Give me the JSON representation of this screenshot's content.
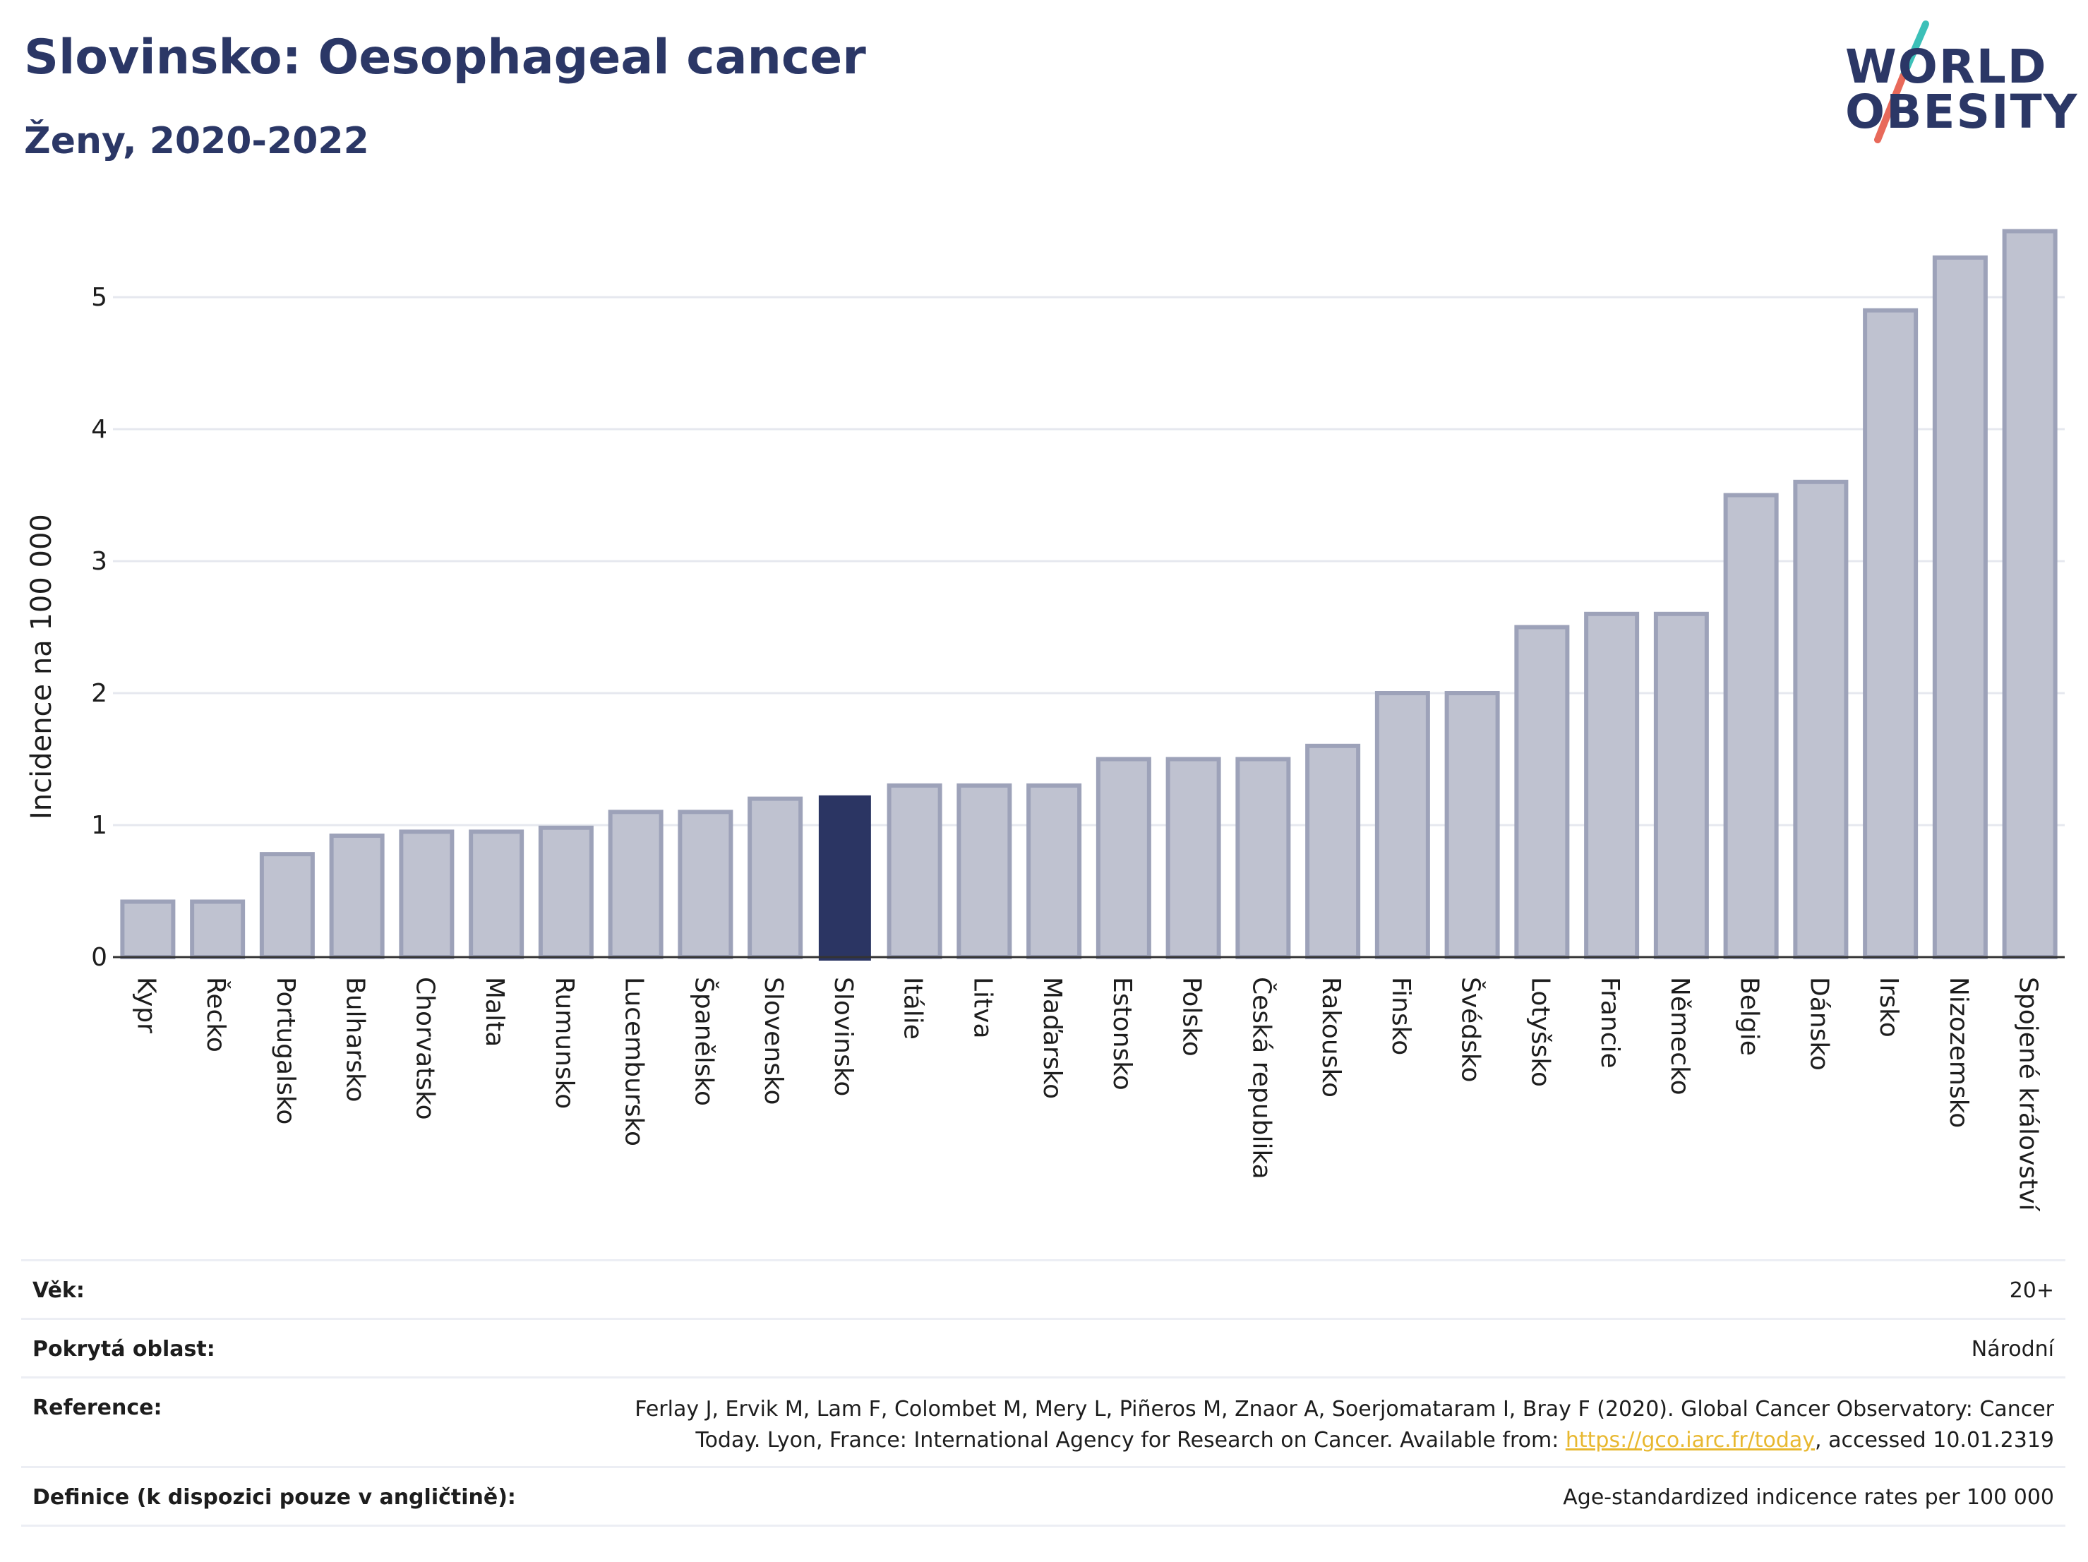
{
  "header": {
    "title": "Slovinsko: Oesophageal cancer",
    "subtitle": "Ženy, 2020-2022"
  },
  "logo": {
    "line1": "WORLD",
    "line2": "OBESITY",
    "colors": {
      "text": "#2b3766",
      "slash_top": "#3cc0b8",
      "slash_bottom": "#e8695a"
    }
  },
  "colors": {
    "bar_default": "#bfc2d0",
    "bar_default_border": "#9da2b9",
    "bar_highlight": "#2b3563",
    "grid": "#e6e8ef",
    "axis": "#333333",
    "title": "#2b3766",
    "link": "#e8b830"
  },
  "chart_data": {
    "type": "bar",
    "ylabel": "Incidence na 100 000",
    "ylim": [
      0,
      5.6
    ],
    "yticks": [
      0,
      1,
      2,
      3,
      4,
      5
    ],
    "grid": true,
    "highlight": "Slovinsko",
    "categories": [
      "Kypr",
      "Řecko",
      "Portugalsko",
      "Bulharsko",
      "Chorvatsko",
      "Malta",
      "Rumunsko",
      "Lucembursko",
      "Španělsko",
      "Slovensko",
      "Slovinsko",
      "Itálie",
      "Litva",
      "Maďarsko",
      "Estonsko",
      "Polsko",
      "Česká republika",
      "Rakousko",
      "Finsko",
      "Švédsko",
      "Lotyšsko",
      "Francie",
      "Německo",
      "Belgie",
      "Dánsko",
      "Irsko",
      "Nizozemsko",
      "Spojené království"
    ],
    "values": [
      0.42,
      0.42,
      0.78,
      0.92,
      0.95,
      0.95,
      0.98,
      1.1,
      1.1,
      1.2,
      1.22,
      1.3,
      1.3,
      1.3,
      1.5,
      1.5,
      1.5,
      1.6,
      2.0,
      2.0,
      2.5,
      2.6,
      2.6,
      3.5,
      3.6,
      4.9,
      5.3,
      5.5
    ]
  },
  "meta": {
    "age": {
      "label": "Věk:",
      "value": "20+"
    },
    "area": {
      "label": "Pokrytá oblast:",
      "value": "Národní"
    },
    "reference": {
      "label": "Reference:",
      "line1": "Ferlay J, Ervik M, Lam F, Colombet M, Mery L, Piñeros M, Znaor A, Soerjomataram I, Bray F (2020). Global Cancer Observatory: Cancer",
      "line2_before": "Today. Lyon, France: International Agency for Research on Cancer. Available from: ",
      "link": "https://gco.iarc.fr/today",
      "line2_after": ", accessed 10.01.2319"
    },
    "definition": {
      "label": "Definice (k dispozici pouze v angličtině):",
      "value": "Age-standardized indicence rates per 100 000"
    }
  }
}
